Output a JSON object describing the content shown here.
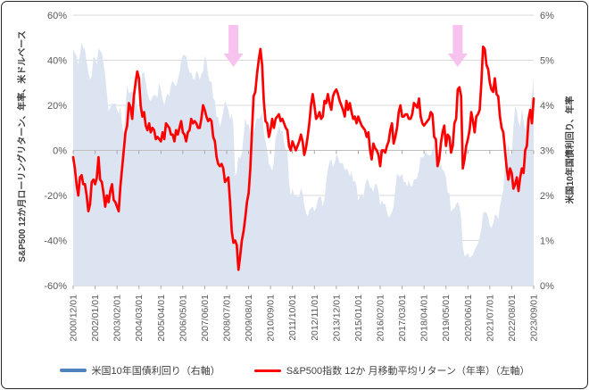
{
  "colors": {
    "area_fill": "#dbe4f0",
    "legend_blue": "#4f81bd",
    "line_red": "#ff0000",
    "arrow_pink": "#f8c2ee",
    "gridline": "#d9d9d9",
    "zero_axis": "#bfbfbf",
    "tick_mark": "#a6a6a6",
    "tick_text": "#595959"
  },
  "chart_data": {
    "type": "area+line combo",
    "grid": "horizontal only",
    "x_tick_every": 13,
    "x_tick_labels": [
      "2000/12/01",
      "2002/01/01",
      "2003/02/01",
      "2004/03/01",
      "2005/04/01",
      "2006/05/01",
      "2007/06/01",
      "2008/07/01",
      "2009/08/01",
      "2010/09/01",
      "2011/10/01",
      "2012/11/01",
      "2013/12/01",
      "2015/01/01",
      "2016/02/01",
      "2017/03/01",
      "2018/04/01",
      "2019/05/01",
      "2020/06/01",
      "2021/07/01",
      "2022/08/01",
      "2023/09/01"
    ],
    "left_axis": {
      "title": "S&P500 12か月ローリングリターン、年率、米ドルベース",
      "min": -60,
      "max": 60,
      "tick_values": [
        60,
        40,
        20,
        0,
        -20,
        -40,
        -60
      ],
      "tick_labels": [
        "60%",
        "40%",
        "20%",
        "0%",
        "-20%",
        "-40%",
        "-60%"
      ]
    },
    "right_axis": {
      "title": "米国10年国債利回り、年率",
      "min": 0,
      "max": 6,
      "tick_values": [
        6,
        5,
        4,
        3,
        2,
        1,
        0
      ],
      "tick_labels": [
        "6%",
        "5%",
        "4%",
        "3%",
        "2%",
        "1%",
        "0%"
      ]
    },
    "series": [
      {
        "name": "米国10年国債利回り（右軸）",
        "type": "area",
        "axis": "right",
        "values": [
          5.24,
          5.16,
          5.1,
          4.89,
          5.14,
          5.39,
          5.28,
          5.24,
          4.97,
          4.73,
          4.57,
          4.65,
          5.09,
          5.04,
          4.91,
          5.28,
          5.21,
          5.16,
          4.93,
          4.65,
          4.26,
          3.87,
          3.94,
          4.05,
          4.03,
          4.05,
          3.9,
          3.81,
          3.96,
          3.57,
          3.33,
          3.98,
          4.45,
          4.27,
          4.29,
          4.3,
          4.27,
          4.15,
          3.97,
          3.83,
          4.35,
          4.72,
          4.73,
          4.5,
          4.28,
          4.13,
          4.1,
          4.19,
          4.23,
          4.22,
          4.17,
          4.5,
          4.34,
          4.14,
          4.0,
          4.18,
          4.26,
          4.2,
          4.46,
          4.54,
          4.47,
          4.42,
          4.57,
          4.72,
          4.99,
          5.11,
          5.11,
          5.09,
          4.88,
          4.72,
          4.73,
          4.6,
          4.56,
          4.76,
          4.72,
          4.56,
          4.69,
          4.75,
          5.1,
          5.0,
          4.67,
          4.52,
          4.53,
          4.15,
          4.1,
          3.74,
          3.74,
          3.51,
          3.68,
          3.88,
          4.1,
          4.01,
          3.89,
          3.69,
          3.81,
          3.53,
          2.42,
          2.52,
          2.87,
          2.82,
          2.93,
          3.29,
          3.72,
          3.56,
          3.59,
          3.4,
          3.39,
          3.4,
          3.59,
          3.73,
          3.69,
          3.73,
          3.85,
          3.42,
          3.2,
          3.01,
          2.7,
          2.65,
          2.54,
          2.76,
          3.29,
          3.39,
          3.58,
          3.41,
          3.46,
          3.17,
          3.0,
          3.0,
          2.3,
          1.98,
          2.15,
          2.01,
          1.98,
          1.97,
          1.97,
          2.17,
          2.05,
          1.8,
          1.62,
          1.53,
          1.68,
          1.72,
          1.75,
          1.65,
          1.72,
          1.91,
          1.98,
          1.96,
          1.76,
          1.93,
          2.3,
          2.58,
          2.74,
          2.81,
          2.62,
          2.72,
          2.9,
          2.86,
          2.71,
          2.72,
          2.71,
          2.56,
          2.6,
          2.54,
          2.42,
          2.53,
          2.3,
          2.33,
          2.21,
          1.88,
          1.98,
          2.04,
          1.94,
          2.2,
          2.36,
          2.32,
          2.17,
          2.17,
          2.07,
          2.26,
          2.24,
          2.09,
          1.78,
          1.89,
          1.81,
          1.81,
          1.64,
          1.5,
          1.56,
          1.63,
          1.76,
          2.14,
          2.49,
          2.43,
          2.42,
          2.48,
          2.3,
          2.3,
          2.19,
          2.32,
          2.21,
          2.2,
          2.36,
          2.35,
          2.4,
          2.58,
          2.86,
          2.84,
          2.87,
          2.98,
          2.91,
          2.89,
          2.89,
          3.0,
          3.15,
          3.12,
          2.83,
          2.71,
          2.68,
          2.57,
          2.53,
          2.4,
          2.07,
          2.06,
          1.63,
          1.7,
          1.71,
          1.81,
          1.86,
          1.76,
          1.5,
          0.87,
          0.66,
          0.67,
          0.73,
          0.62,
          0.65,
          0.68,
          0.79,
          0.87,
          0.93,
          1.08,
          1.26,
          1.61,
          1.64,
          1.62,
          1.52,
          1.32,
          1.28,
          1.37,
          1.58,
          1.56,
          1.47,
          1.76,
          1.93,
          2.13,
          2.75,
          2.9,
          3.14,
          2.9,
          2.9,
          3.52,
          3.98,
          3.89,
          3.62,
          3.53,
          3.92,
          3.66,
          3.46,
          3.64,
          3.81,
          3.96,
          4.25,
          4.6
        ]
      },
      {
        "name": "S&P500指数 12か 月移動平均リターン（年率）（左軸）",
        "type": "line",
        "axis": "left",
        "values": [
          -3,
          -8,
          -15,
          -20,
          -12,
          -11,
          -15,
          -15,
          -20,
          -27,
          -24,
          -14,
          -13,
          -15,
          -12,
          -3,
          -13,
          -14,
          -19,
          -25,
          -20,
          -23,
          -18,
          -15,
          -22,
          -23,
          -25,
          -27,
          -16,
          -8,
          0,
          8,
          11,
          21,
          19,
          14,
          24,
          30,
          35,
          32,
          20,
          15,
          17,
          11,
          9,
          12,
          8,
          10,
          9,
          5,
          6,
          5,
          4,
          8,
          5,
          12,
          11,
          10,
          7,
          7,
          4,
          9,
          7,
          10,
          13,
          8,
          7,
          4,
          8,
          9,
          14,
          12,
          13,
          12,
          10,
          10,
          14,
          20,
          18,
          15,
          13,
          14,
          13,
          6,
          4,
          -3,
          -6,
          -7,
          -6,
          -8,
          -14,
          -13,
          -12,
          -23,
          -36,
          -41,
          -40,
          -42,
          -53,
          -47,
          -40,
          -36,
          -30,
          -23,
          -19,
          -8,
          9,
          24,
          26,
          34,
          40,
          45,
          38,
          22,
          13,
          12,
          6,
          9,
          14,
          10,
          14,
          15,
          16,
          13,
          14,
          12,
          10,
          9,
          2,
          0,
          4,
          2,
          0,
          2,
          4,
          7,
          4,
          -2,
          1,
          6,
          12,
          20,
          25,
          20,
          14,
          15,
          17,
          14,
          15,
          22,
          21,
          25,
          21,
          18,
          24,
          26,
          27,
          25,
          22,
          20,
          18,
          15,
          22,
          18,
          21,
          17,
          14,
          15,
          12,
          15,
          13,
          11,
          10,
          9,
          6,
          8,
          0,
          -4,
          3,
          1,
          0,
          -2,
          -7,
          0,
          0,
          -1,
          2,
          4,
          9,
          12,
          3,
          6,
          10,
          17,
          20,
          15,
          15,
          16,
          16,
          14,
          14,
          16,
          21,
          20,
          19,
          23,
          15,
          12,
          11,
          12,
          13,
          14,
          17,
          16,
          6,
          5,
          -7,
          -4,
          3,
          8,
          11,
          2,
          7,
          6,
          -1,
          2,
          12,
          14,
          27,
          28,
          24,
          -8,
          -4,
          2,
          5,
          9,
          17,
          13,
          8,
          15,
          16,
          18,
          30,
          46,
          45,
          38,
          36,
          30,
          27,
          26,
          32,
          25,
          24,
          15,
          10,
          8,
          0,
          -8,
          -13,
          -8,
          -10,
          -17,
          -15,
          -12,
          -18,
          -12,
          -8,
          -10,
          0,
          2,
          14,
          18,
          12,
          23
        ]
      }
    ],
    "annotations": [
      {
        "shape": "block-arrow-down",
        "month_index": 95
      },
      {
        "shape": "block-arrow-down",
        "month_index": 228
      }
    ]
  },
  "legend": {
    "treasury_label": "米国10年国債利回り（右軸）",
    "sp500_label": "S&P500指数 12か 月移動平均リターン（年率）（左軸）"
  }
}
